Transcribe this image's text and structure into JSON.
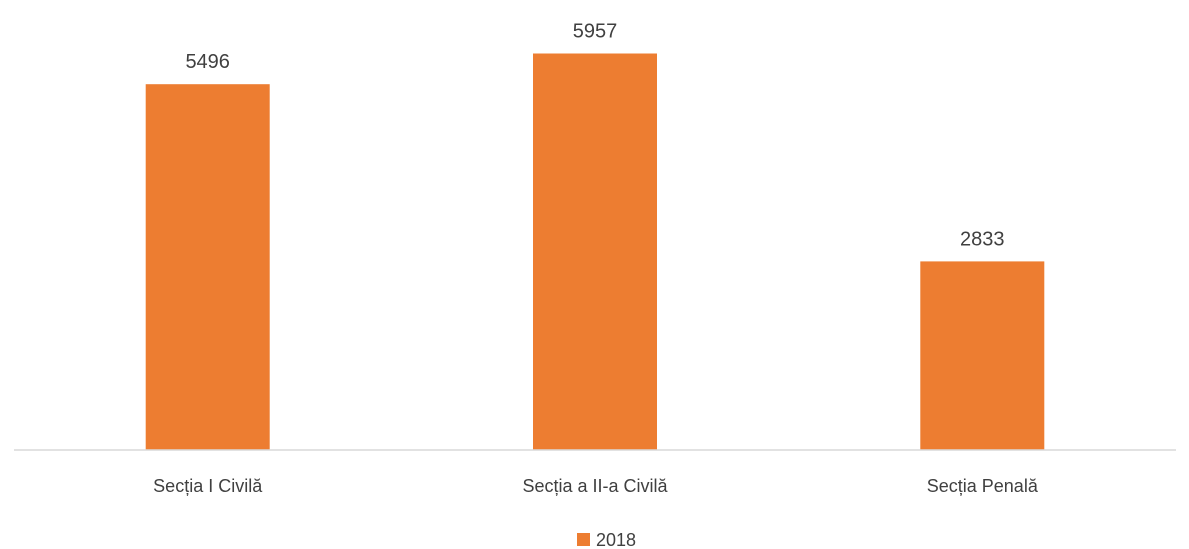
{
  "chart_data": {
    "type": "bar",
    "categories": [
      "Secția I Civilă",
      "Secția a II-a Civilă",
      "Secția Penală"
    ],
    "series": [
      {
        "name": "2018",
        "values": [
          5496,
          5957,
          2833
        ],
        "color": "#ED7D31"
      }
    ],
    "title": "",
    "xlabel": "",
    "ylabel": "",
    "ylim": [
      0,
      6400
    ],
    "grid": false,
    "legend": "bottom",
    "data_labels": [
      "5496",
      "5957",
      "2833"
    ]
  }
}
